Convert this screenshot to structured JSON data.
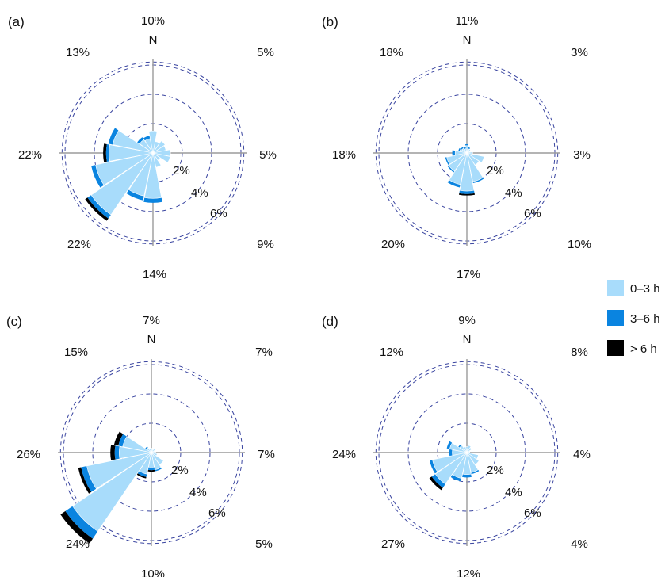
{
  "colors": {
    "c0_3": "#a8dcfb",
    "c3_6": "#0a84e0",
    "c6p": "#000000",
    "axis": "#9b9b9b",
    "ring": "#3a45a0"
  },
  "legend": [
    {
      "label": "0–3 h",
      "color": "#a8dcfb"
    },
    {
      "label": "3–6 h",
      "color": "#0a84e0"
    },
    {
      "label": "> 6 h",
      "color": "#000000"
    }
  ],
  "chart_data": [
    {
      "type": "wind-rose",
      "panel": "(a)",
      "north": "N",
      "ring_labels": [
        "2%",
        "4%",
        "6%"
      ],
      "direction_labels": {
        "N": "10%",
        "NE": "5%",
        "E": "5%",
        "SE": "9%",
        "S": "14%",
        "SW": "22%",
        "W": "22%",
        "NW": "13%"
      },
      "sectors": [
        {
          "dir": "N",
          "v0_3": 1.5,
          "v3_6": 0.0,
          "v6p": 0.0
        },
        {
          "dir": "NNE",
          "v0_3": 0.8,
          "v3_6": 0.0,
          "v6p": 0.0
        },
        {
          "dir": "NE",
          "v0_3": 1.0,
          "v3_6": 0.0,
          "v6p": 0.0
        },
        {
          "dir": "ENE",
          "v0_3": 0.9,
          "v3_6": 0.0,
          "v6p": 0.0
        },
        {
          "dir": "E",
          "v0_3": 1.2,
          "v3_6": 0.0,
          "v6p": 0.0
        },
        {
          "dir": "ESE",
          "v0_3": 1.2,
          "v3_6": 0.0,
          "v6p": 0.0
        },
        {
          "dir": "SE",
          "v0_3": 0.6,
          "v3_6": 0.0,
          "v6p": 0.0
        },
        {
          "dir": "SSE",
          "v0_3": 1.0,
          "v3_6": 0.0,
          "v6p": 0.0
        },
        {
          "dir": "S",
          "v0_3": 3.1,
          "v3_6": 0.3,
          "v6p": 0.0
        },
        {
          "dir": "SSW",
          "v0_3": 3.0,
          "v3_6": 0.3,
          "v6p": 0.0
        },
        {
          "dir": "SW",
          "v0_3": 5.1,
          "v3_6": 0.3,
          "v6p": 0.2
        },
        {
          "dir": "WSW",
          "v0_3": 4.0,
          "v3_6": 0.3,
          "v6p": 0.0
        },
        {
          "dir": "W",
          "v0_3": 3.0,
          "v3_6": 0.2,
          "v6p": 0.2
        },
        {
          "dir": "WNW",
          "v0_3": 2.8,
          "v3_6": 0.3,
          "v6p": 0.0
        },
        {
          "dir": "NW",
          "v0_3": 1.1,
          "v3_6": 0.2,
          "v6p": 0.0
        },
        {
          "dir": "NNW",
          "v0_3": 1.0,
          "v3_6": 0.2,
          "v6p": 0.0
        }
      ]
    },
    {
      "type": "wind-rose",
      "panel": "(b)",
      "north": "N",
      "ring_labels": [
        "2%",
        "4%",
        "6%"
      ],
      "direction_labels": {
        "N": "11%",
        "NE": "3%",
        "E": "3%",
        "SE": "10%",
        "S": "17%",
        "SW": "20%",
        "W": "18%",
        "NW": "18%"
      },
      "sectors": [
        {
          "dir": "N",
          "v0_3": 0.5,
          "v3_6": 0.1,
          "v6p": 0.0
        },
        {
          "dir": "NNE",
          "v0_3": 0.3,
          "v3_6": 0.1,
          "v6p": 0.0
        },
        {
          "dir": "NE",
          "v0_3": 0.3,
          "v3_6": 0.0,
          "v6p": 0.0
        },
        {
          "dir": "ENE",
          "v0_3": 0.2,
          "v3_6": 0.0,
          "v6p": 0.0
        },
        {
          "dir": "E",
          "v0_3": 0.4,
          "v3_6": 0.0,
          "v6p": 0.0
        },
        {
          "dir": "ESE",
          "v0_3": 1.2,
          "v3_6": 0.0,
          "v6p": 0.0
        },
        {
          "dir": "SE",
          "v0_3": 1.0,
          "v3_6": 0.0,
          "v6p": 0.0
        },
        {
          "dir": "SSE",
          "v0_3": 2.0,
          "v3_6": 0.1,
          "v6p": 0.0
        },
        {
          "dir": "S",
          "v0_3": 2.6,
          "v3_6": 0.2,
          "v6p": 0.1
        },
        {
          "dir": "SSW",
          "v0_3": 2.2,
          "v3_6": 0.2,
          "v6p": 0.0
        },
        {
          "dir": "SW",
          "v0_3": 1.5,
          "v3_6": 0.1,
          "v6p": 0.0
        },
        {
          "dir": "WSW",
          "v0_3": 1.4,
          "v3_6": 0.1,
          "v6p": 0.0
        },
        {
          "dir": "W",
          "v0_3": 0.8,
          "v3_6": 0.2,
          "v6p": 0.0
        },
        {
          "dir": "WNW",
          "v0_3": 0.5,
          "v3_6": 0.1,
          "v6p": 0.0
        },
        {
          "dir": "NW",
          "v0_3": 0.4,
          "v3_6": 0.1,
          "v6p": 0.0
        },
        {
          "dir": "NNW",
          "v0_3": 0.3,
          "v3_6": 0.1,
          "v6p": 0.0
        }
      ]
    },
    {
      "type": "wind-rose",
      "panel": "(c)",
      "north": "N",
      "ring_labels": [
        "2%",
        "4%",
        "6%"
      ],
      "direction_labels": {
        "N": "7%",
        "NE": "7%",
        "E": "7%",
        "SE": "5%",
        "S": "10%",
        "SW": "24%",
        "W": "26%",
        "NW": "15%"
      },
      "sectors": [
        {
          "dir": "N",
          "v0_3": 0.3,
          "v3_6": 0.0,
          "v6p": 0.0
        },
        {
          "dir": "NNE",
          "v0_3": 0.2,
          "v3_6": 0.0,
          "v6p": 0.0
        },
        {
          "dir": "NE",
          "v0_3": 0.3,
          "v3_6": 0.0,
          "v6p": 0.0
        },
        {
          "dir": "ENE",
          "v0_3": 0.2,
          "v3_6": 0.0,
          "v6p": 0.0
        },
        {
          "dir": "E",
          "v0_3": 0.3,
          "v3_6": 0.0,
          "v6p": 0.0
        },
        {
          "dir": "ESE",
          "v0_3": 0.4,
          "v3_6": 0.0,
          "v6p": 0.0
        },
        {
          "dir": "SE",
          "v0_3": 1.0,
          "v3_6": 0.0,
          "v6p": 0.0
        },
        {
          "dir": "SSE",
          "v0_3": 1.2,
          "v3_6": 0.1,
          "v6p": 0.0
        },
        {
          "dir": "S",
          "v0_3": 1.0,
          "v3_6": 0.2,
          "v6p": 0.1
        },
        {
          "dir": "SSW",
          "v0_3": 1.5,
          "v3_6": 0.2,
          "v6p": 0.1
        },
        {
          "dir": "SW",
          "v0_3": 6.5,
          "v3_6": 0.6,
          "v6p": 0.4
        },
        {
          "dir": "WSW",
          "v0_3": 4.5,
          "v3_6": 0.4,
          "v6p": 0.2
        },
        {
          "dir": "W",
          "v0_3": 2.2,
          "v3_6": 0.3,
          "v6p": 0.3
        },
        {
          "dir": "WNW",
          "v0_3": 2.0,
          "v3_6": 0.3,
          "v6p": 0.3
        },
        {
          "dir": "NW",
          "v0_3": 0.4,
          "v3_6": 0.1,
          "v6p": 0.0
        },
        {
          "dir": "NNW",
          "v0_3": 0.3,
          "v3_6": 0.0,
          "v6p": 0.0
        }
      ]
    },
    {
      "type": "wind-rose",
      "panel": "(d)",
      "north": "N",
      "ring_labels": [
        "2%",
        "4%",
        "6%"
      ],
      "direction_labels": {
        "N": "9%",
        "NE": "8%",
        "E": "4%",
        "SE": "4%",
        "S": "12%",
        "SW": "27%",
        "W": "24%",
        "NW": "12%"
      },
      "sectors": [
        {
          "dir": "N",
          "v0_3": 0.4,
          "v3_6": 0.0,
          "v6p": 0.0
        },
        {
          "dir": "NNE",
          "v0_3": 0.5,
          "v3_6": 0.0,
          "v6p": 0.0
        },
        {
          "dir": "NE",
          "v0_3": 0.4,
          "v3_6": 0.0,
          "v6p": 0.0
        },
        {
          "dir": "ENE",
          "v0_3": 0.2,
          "v3_6": 0.0,
          "v6p": 0.0
        },
        {
          "dir": "E",
          "v0_3": 0.2,
          "v3_6": 0.0,
          "v6p": 0.0
        },
        {
          "dir": "ESE",
          "v0_3": 0.8,
          "v3_6": 0.0,
          "v6p": 0.0
        },
        {
          "dir": "SE",
          "v0_3": 1.0,
          "v3_6": 0.0,
          "v6p": 0.0
        },
        {
          "dir": "SSE",
          "v0_3": 1.4,
          "v3_6": 0.1,
          "v6p": 0.0
        },
        {
          "dir": "S",
          "v0_3": 1.5,
          "v3_6": 0.2,
          "v6p": 0.0
        },
        {
          "dir": "SSW",
          "v0_3": 1.8,
          "v3_6": 0.2,
          "v6p": 0.0
        },
        {
          "dir": "SW",
          "v0_3": 2.6,
          "v3_6": 0.3,
          "v6p": 0.2
        },
        {
          "dir": "WSW",
          "v0_3": 2.4,
          "v3_6": 0.2,
          "v6p": 0.0
        },
        {
          "dir": "W",
          "v0_3": 1.0,
          "v3_6": 0.2,
          "v6p": 0.0
        },
        {
          "dir": "WNW",
          "v0_3": 1.2,
          "v3_6": 0.2,
          "v6p": 0.0
        },
        {
          "dir": "NW",
          "v0_3": 0.6,
          "v3_6": 0.1,
          "v6p": 0.0
        },
        {
          "dir": "NNW",
          "v0_3": 0.4,
          "v3_6": 0.0,
          "v6p": 0.0
        }
      ]
    }
  ]
}
